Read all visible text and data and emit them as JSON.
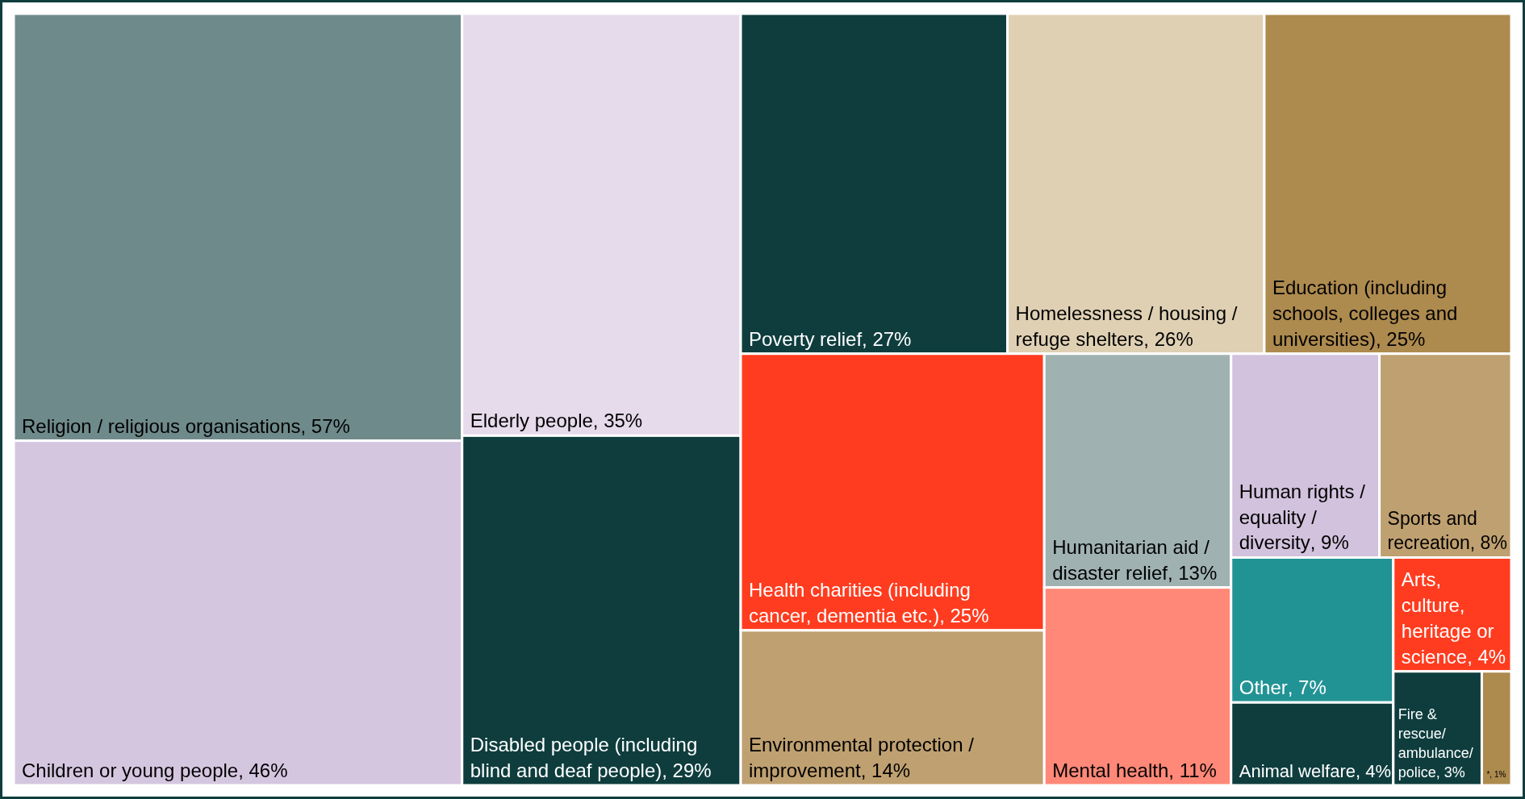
{
  "chart_data": {
    "type": "other",
    "categories": [
      "Religion / religious organisations",
      "Children or young people",
      "Elderly people",
      "Disabled people (including blind and deaf people)",
      "Poverty relief",
      "Homelessness / housing / refuge shelters",
      "Education (including schools, colleges and universities)",
      "Health charities (including cancer, dementia etc.)",
      "Environmental protection / improvement",
      "Humanitarian aid / disaster relief",
      "Mental health",
      "Human rights / equality / diversity",
      "Sports and recreation",
      "Other",
      "Animal welfare",
      "Arts, culture, heritage or science",
      "Fire & rescue/ ambulance/ police",
      "*"
    ],
    "values": [
      57,
      46,
      35,
      29,
      27,
      26,
      25,
      25,
      14,
      13,
      11,
      9,
      8,
      7,
      4,
      4,
      3,
      1
    ],
    "value_labels": [
      ", 57%",
      ", 46%",
      ", 35%",
      ", 29%",
      ", 27%",
      ", 26%",
      ", 25%",
      ", 25%",
      ", 14%",
      ", 13%",
      ", 11%",
      ", 9%",
      ", 8%",
      ", 7%",
      ", 4%",
      ", 4%",
      ", 3%",
      ", 1%"
    ],
    "colors": [
      "#6f8a8b",
      "#d5c6e0",
      "#e5dbeb",
      "#0f3d3e",
      "#0f3d3e",
      "#dfd0b4",
      "#ad8a4e",
      "#ff3c1f",
      "#bfa070",
      "#a0b1b2",
      "#ff8878",
      "#d2c2dd",
      "#bfa070",
      "#229395",
      "#0f3d3e",
      "#ff3c1f",
      "#0f3d3e",
      "#ad8a4e"
    ]
  }
}
